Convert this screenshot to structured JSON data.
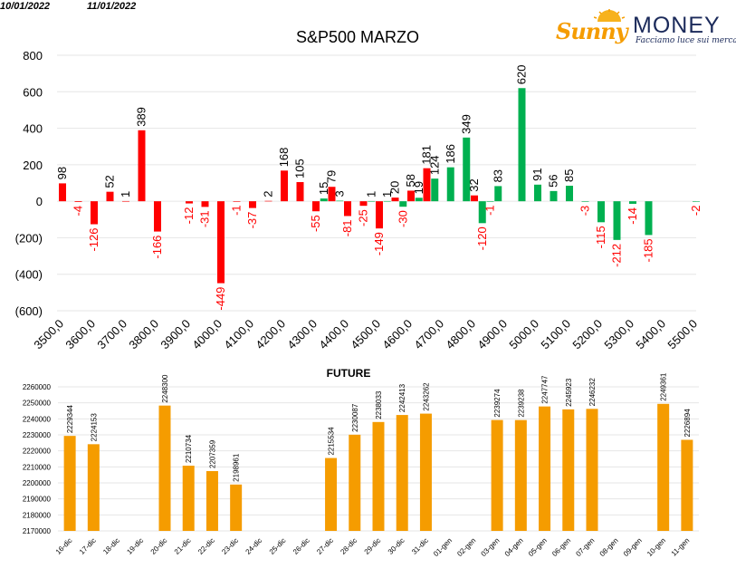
{
  "header": {
    "date_left": "10/01/2022",
    "date_right": "11/01/2022"
  },
  "logo": {
    "brand_sunny": "Sunny",
    "brand_money": "MONEY",
    "tagline": "Facciamo luce sui mercati"
  },
  "colors": {
    "positive": "#00b050",
    "negative": "#ff0000",
    "future_bar": "#f59c00",
    "negative_label": "#ff0000",
    "positive_label": "#000000"
  },
  "chart_data": [
    {
      "type": "bar",
      "title": "S&P500 MARZO",
      "ylim": [
        -600,
        800
      ],
      "yticks": [
        800,
        600,
        400,
        200,
        0,
        -200,
        -400,
        -600
      ],
      "ytick_labels": [
        "800",
        "600",
        "400",
        "200",
        "0",
        "(200)",
        "(400)",
        "(600)"
      ],
      "x_range": [
        3500,
        5500
      ],
      "xtick_labels": [
        "3500,0",
        "3600,0",
        "3700,0",
        "3800,0",
        "3900,0",
        "4000,0",
        "4100,0",
        "4200,0",
        "4300,0",
        "4400,0",
        "4500,0",
        "4600,0",
        "4700,0",
        "4800,0",
        "4900,0",
        "5000,0",
        "5100,0",
        "5200,0",
        "5300,0",
        "5400,0",
        "5500,0"
      ],
      "xticks": [
        3500,
        3600,
        3700,
        3800,
        3900,
        4000,
        4100,
        4200,
        4300,
        4400,
        4500,
        4600,
        4700,
        4800,
        4900,
        5000,
        5100,
        5200,
        5300,
        5400,
        5500
      ],
      "series": [
        {
          "color_key": "negative",
          "points": [
            {
              "x": 3500,
              "y": 98,
              "label": "98"
            },
            {
              "x": 3550,
              "y": -4,
              "label": "-4"
            },
            {
              "x": 3600,
              "y": -126,
              "label": "-126"
            },
            {
              "x": 3650,
              "y": 52,
              "label": "52"
            },
            {
              "x": 3700,
              "y": 1,
              "label": "1"
            },
            {
              "x": 3750,
              "y": 389,
              "label": "389"
            },
            {
              "x": 3800,
              "y": -166,
              "label": "-166"
            },
            {
              "x": 3900,
              "y": -12,
              "label": "-12"
            },
            {
              "x": 3950,
              "y": -31,
              "label": "-31"
            },
            {
              "x": 4000,
              "y": -449,
              "label": "-449"
            },
            {
              "x": 4050,
              "y": -1,
              "label": "-1"
            },
            {
              "x": 4100,
              "y": -37,
              "label": "-37"
            },
            {
              "x": 4150,
              "y": 2,
              "label": "2"
            },
            {
              "x": 4200,
              "y": 168,
              "label": "168"
            },
            {
              "x": 4250,
              "y": 105,
              "label": "105"
            },
            {
              "x": 4300,
              "y": -55,
              "label": "-55"
            },
            {
              "x": 4350,
              "y": 79,
              "label": "79"
            },
            {
              "x": 4400,
              "y": -81,
              "label": "-81"
            },
            {
              "x": 4450,
              "y": -25,
              "label": "-25"
            },
            {
              "x": 4500,
              "y": -149,
              "label": "-149"
            },
            {
              "x": 4550,
              "y": 20,
              "label": "20"
            },
            {
              "x": 4600,
              "y": 58,
              "label": "58"
            },
            {
              "x": 4650,
              "y": 181,
              "label": "181"
            },
            {
              "x": 4800,
              "y": 32,
              "label": "32"
            }
          ]
        },
        {
          "color_key": "positive",
          "points": [
            {
              "x": 4325,
              "y": 15,
              "label": "15"
            },
            {
              "x": 4375,
              "y": 3,
              "label": "3"
            },
            {
              "x": 4475,
              "y": 1,
              "label": "1"
            },
            {
              "x": 4525,
              "y": 1,
              "label": "1"
            },
            {
              "x": 4575,
              "y": -30,
              "label": "-30"
            },
            {
              "x": 4625,
              "y": 19,
              "label": "19"
            },
            {
              "x": 4675,
              "y": 124,
              "label": "124"
            },
            {
              "x": 4725,
              "y": 186,
              "label": "186"
            },
            {
              "x": 4775,
              "y": 349,
              "label": "349"
            },
            {
              "x": 4825,
              "y": -120,
              "label": "-120"
            },
            {
              "x": 4850,
              "y": -1,
              "label": "-1"
            },
            {
              "x": 4875,
              "y": 83,
              "label": "83"
            },
            {
              "x": 4950,
              "y": 620,
              "label": "620"
            },
            {
              "x": 5000,
              "y": 91,
              "label": "91"
            },
            {
              "x": 5050,
              "y": 56,
              "label": "56"
            },
            {
              "x": 5100,
              "y": 85,
              "label": "85"
            },
            {
              "x": 5150,
              "y": -3,
              "label": "-3"
            },
            {
              "x": 5200,
              "y": -115,
              "label": "-115"
            },
            {
              "x": 5250,
              "y": -212,
              "label": "-212"
            },
            {
              "x": 5300,
              "y": -14,
              "label": "-14"
            },
            {
              "x": 5350,
              "y": -185,
              "label": "-185"
            },
            {
              "x": 5500,
              "y": -2,
              "label": "-2"
            }
          ]
        }
      ]
    },
    {
      "type": "bar",
      "title": "FUTURE",
      "ylim": [
        2170000,
        2260000
      ],
      "yticks": [
        2170000,
        2180000,
        2190000,
        2200000,
        2210000,
        2220000,
        2230000,
        2240000,
        2250000,
        2260000
      ],
      "ytick_labels": [
        "2170000",
        "2180000",
        "2190000",
        "2200000",
        "2210000",
        "2220000",
        "2230000",
        "2240000",
        "2250000",
        "2260000"
      ],
      "categories": [
        "16-dic",
        "17-dic",
        "18-dic",
        "19-dic",
        "20-dic",
        "21-dic",
        "22-dic",
        "23-dic",
        "24-dic",
        "25-dic",
        "26-dic",
        "27-dic",
        "28-dic",
        "29-dic",
        "30-dic",
        "31-dic",
        "01-gen",
        "02-gen",
        "03-gen",
        "04-gen",
        "05-gen",
        "06-gen",
        "07-gen",
        "08-gen",
        "09-gen",
        "10-gen",
        "11-gen"
      ],
      "values": [
        2229344,
        2224153,
        null,
        null,
        2248300,
        2210734,
        2207359,
        2198961,
        null,
        null,
        null,
        2215534,
        2230087,
        2238033,
        2242413,
        2243262,
        null,
        null,
        2239274,
        2239238,
        2247747,
        2245923,
        2246232,
        null,
        null,
        2249361,
        2226894
      ],
      "value_labels": [
        "2229344",
        "2224153",
        "",
        "",
        "2248300",
        "2210734",
        "2207359",
        "2198961",
        "",
        "",
        "",
        "2215534",
        "2230087",
        "2238033",
        "2242413",
        "2243262",
        "",
        "",
        "2239274",
        "2239238",
        "2247747",
        "2245923",
        "2246232",
        "",
        "",
        "2249361",
        "2226894"
      ]
    }
  ]
}
